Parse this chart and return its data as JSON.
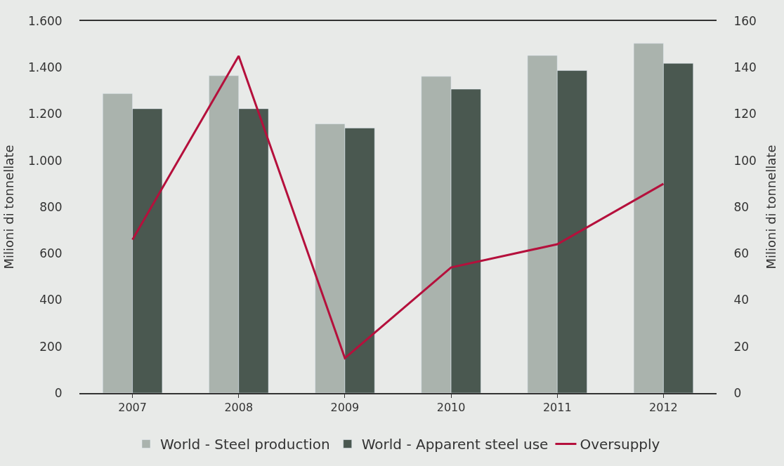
{
  "chart_data": {
    "type": "bar",
    "ylabel": "Milioni di tonnellate",
    "y2label": "Milioni di tonnellate",
    "categories": [
      "2007",
      "2008",
      "2009",
      "2010",
      "2011",
      "2012"
    ],
    "series": [
      {
        "name": "World - Steel production",
        "color": "#aab3ad",
        "values": [
          1288,
          1365,
          1158,
          1362,
          1452,
          1504
        ]
      },
      {
        "name": "World - Apparent steel use",
        "color": "#4a5850",
        "values": [
          1223,
          1223,
          1140,
          1307,
          1387,
          1418
        ]
      },
      {
        "name": "Oversupply",
        "color": "#b5103c",
        "type": "line",
        "axis": "y2",
        "values": [
          66,
          145,
          15,
          54,
          64,
          90
        ]
      }
    ],
    "ylim": [
      0,
      1600
    ],
    "yticks": [
      {
        "value": 0,
        "label": "0"
      },
      {
        "value": 200,
        "label": "200"
      },
      {
        "value": 400,
        "label": "400"
      },
      {
        "value": 600,
        "label": "600"
      },
      {
        "value": 800,
        "label": "800"
      },
      {
        "value": 1000,
        "label": "1.000"
      },
      {
        "value": 1200,
        "label": "1.200"
      },
      {
        "value": 1400,
        "label": "1.400"
      },
      {
        "value": 1600,
        "label": "1.600"
      }
    ],
    "y2lim": [
      0,
      160
    ],
    "y2ticks": [
      0,
      20,
      40,
      60,
      80,
      100,
      120,
      140,
      160
    ],
    "grid": false,
    "legend": "bottom",
    "marker": "none",
    "line_style": "solid"
  }
}
